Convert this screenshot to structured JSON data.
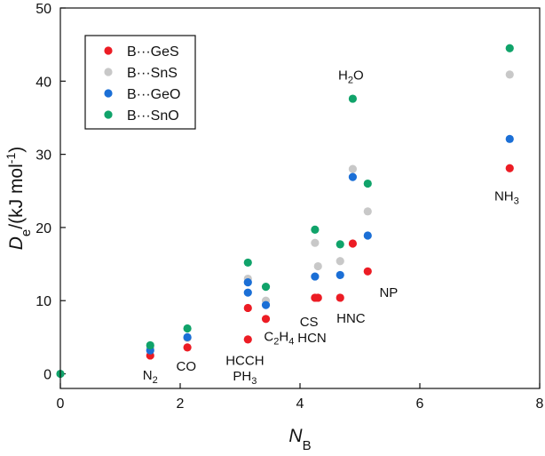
{
  "chart_data": {
    "type": "scatter",
    "title": "",
    "xlabel": {
      "main": "N",
      "sub": "B"
    },
    "ylabel": {
      "main": "D",
      "sub": "e",
      "unit_prefix": "/(kJ mol",
      "unit_sup": "-1",
      "unit_suffix": ")"
    },
    "xlim": [
      0,
      8
    ],
    "ylim": [
      -2,
      50
    ],
    "xticks": [
      0,
      2,
      4,
      6,
      8
    ],
    "yticks": [
      0,
      10,
      20,
      30,
      40,
      50
    ],
    "legend": {
      "position": "top-left"
    },
    "series": [
      {
        "name": "B···GeS",
        "color": "#ec1c24",
        "points": [
          {
            "x": 1.5,
            "y": 2.5
          },
          {
            "x": 2.12,
            "y": 3.6
          },
          {
            "x": 3.13,
            "y": 4.7
          },
          {
            "x": 3.13,
            "y": 9.0
          },
          {
            "x": 3.43,
            "y": 7.5
          },
          {
            "x": 4.25,
            "y": 10.4
          },
          {
            "x": 4.3,
            "y": 10.4
          },
          {
            "x": 4.67,
            "y": 10.4
          },
          {
            "x": 4.88,
            "y": 17.8
          },
          {
            "x": 5.13,
            "y": 14.0
          },
          {
            "x": 7.5,
            "y": 28.1
          }
        ]
      },
      {
        "name": "B···SnS",
        "color": "#c8c8c8",
        "points": [
          {
            "x": 1.5,
            "y": 3.5
          },
          {
            "x": 2.12,
            "y": 4.9
          },
          {
            "x": 3.13,
            "y": 13.0
          },
          {
            "x": 3.43,
            "y": 10.0
          },
          {
            "x": 4.25,
            "y": 17.9
          },
          {
            "x": 4.3,
            "y": 14.7
          },
          {
            "x": 4.67,
            "y": 15.4
          },
          {
            "x": 4.88,
            "y": 28.0
          },
          {
            "x": 5.13,
            "y": 22.2
          },
          {
            "x": 7.5,
            "y": 40.9
          }
        ]
      },
      {
        "name": "B···GeO",
        "color": "#1b6fd6",
        "points": [
          {
            "x": 1.5,
            "y": 3.2
          },
          {
            "x": 2.12,
            "y": 5.0
          },
          {
            "x": 3.13,
            "y": 11.1
          },
          {
            "x": 3.13,
            "y": 12.5
          },
          {
            "x": 3.43,
            "y": 9.4
          },
          {
            "x": 4.25,
            "y": 13.3
          },
          {
            "x": 4.67,
            "y": 13.5
          },
          {
            "x": 4.88,
            "y": 26.9
          },
          {
            "x": 5.13,
            "y": 18.9
          },
          {
            "x": 7.5,
            "y": 32.1
          }
        ]
      },
      {
        "name": "B···SnO",
        "color": "#10a36a",
        "points": [
          {
            "x": 0,
            "y": 0
          },
          {
            "x": 1.5,
            "y": 3.9
          },
          {
            "x": 2.12,
            "y": 6.2
          },
          {
            "x": 3.13,
            "y": 15.2
          },
          {
            "x": 3.43,
            "y": 11.9
          },
          {
            "x": 4.25,
            "y": 19.7
          },
          {
            "x": 4.67,
            "y": 17.7
          },
          {
            "x": 4.88,
            "y": 37.6
          },
          {
            "x": 5.13,
            "y": 26.0
          },
          {
            "x": 7.5,
            "y": 44.5
          }
        ]
      }
    ],
    "annotations": [
      {
        "name": "annotation-n2",
        "main": "N",
        "sub": "2",
        "after": "",
        "x": 1.5,
        "y": -0.8
      },
      {
        "name": "annotation-co",
        "main": "CO",
        "sub": "",
        "after": "",
        "x": 2.1,
        "y": 0.4
      },
      {
        "name": "annotation-hcch",
        "main": "HCCH",
        "sub": "",
        "after": "",
        "x": 3.08,
        "y": 1.2
      },
      {
        "name": "annotation-ph3",
        "main": "PH",
        "sub": "3",
        "after": "",
        "x": 3.08,
        "y": -0.9
      },
      {
        "name": "annotation-c2h4",
        "main": "C",
        "sub": "2",
        "after": "H",
        "sub2": "4",
        "x": 3.65,
        "y": 4.5
      },
      {
        "name": "annotation-cs",
        "main": "CS",
        "sub": "",
        "after": "",
        "x": 4.15,
        "y": 6.5
      },
      {
        "name": "annotation-hcn",
        "main": "HCN",
        "sub": "",
        "after": "",
        "x": 4.2,
        "y": 4.3
      },
      {
        "name": "annotation-hnc",
        "main": "HNC",
        "sub": "",
        "after": "",
        "x": 4.85,
        "y": 7.0
      },
      {
        "name": "annotation-np",
        "main": "NP",
        "sub": "",
        "after": "",
        "x": 5.48,
        "y": 10.5
      },
      {
        "name": "annotation-h2o",
        "main": "H",
        "sub": "2",
        "after": "O",
        "x": 4.85,
        "y": 40.2
      },
      {
        "name": "annotation-nh3",
        "main": "NH",
        "sub": "3",
        "after": "",
        "x": 7.45,
        "y": 23.7
      }
    ]
  }
}
